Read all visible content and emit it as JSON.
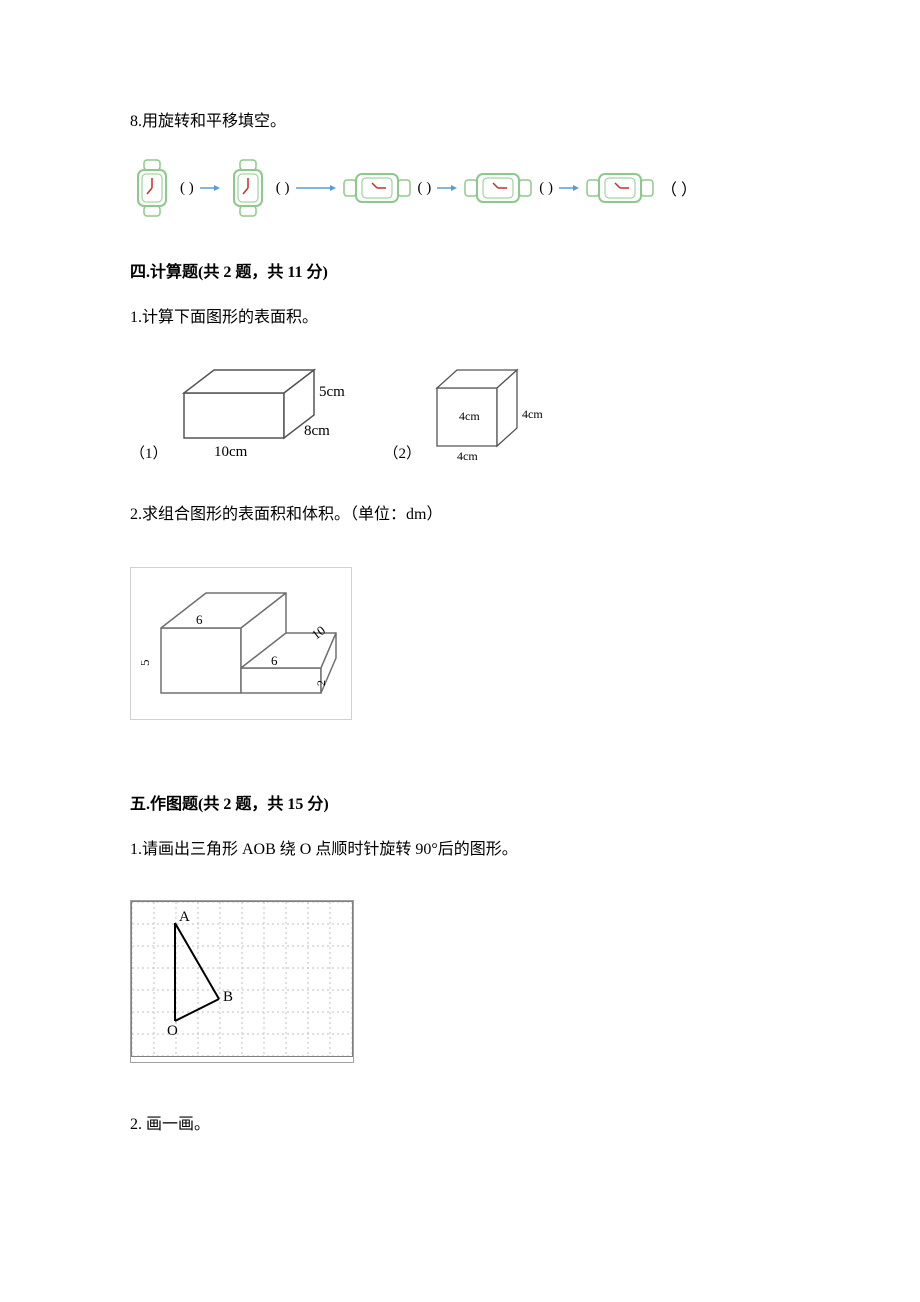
{
  "q8": {
    "text": "8.用旋转和平移填空。",
    "paren": "(    )",
    "final_paren": "（      ）",
    "watch": {
      "body_stroke": "#8dc98d",
      "body_fill": "#ffffff",
      "face_fill": "#ffffff",
      "hand_color": "#c03030"
    },
    "arrow_color": "#5b9bd5"
  },
  "sec4": {
    "heading": "四.计算题(共 2 题，共 11 分)",
    "q1_text": "1.计算下面图形的表面积。",
    "cuboid": {
      "idx": "（1）",
      "l": "10cm",
      "w": "8cm",
      "h": "5cm",
      "stroke": "#666666"
    },
    "cube": {
      "idx": "（2）",
      "s1": "4cm",
      "s2": "4cm",
      "s3": "4cm",
      "stroke": "#666666"
    },
    "q2_text": "2.求组合图形的表面积和体积。（单位：dm）",
    "step": {
      "a": "6",
      "b": "6",
      "c": "10",
      "d": "5",
      "e": "2",
      "stroke": "#808080"
    }
  },
  "sec5": {
    "heading": "五.作图题(共 2 题，共 15 分)",
    "q1_text": "1.请画出三角形 AOB 绕 O 点顺时针旋转 90°后的图形。",
    "grid": {
      "cols": 10,
      "rows": 7,
      "cell": 22,
      "grid_color": "#c0c0c0",
      "border_color": "#808080",
      "line_color": "#000000",
      "labels": {
        "A": "A",
        "O": "O",
        "B": "B"
      }
    },
    "q2_text": "2.   画一画。"
  }
}
